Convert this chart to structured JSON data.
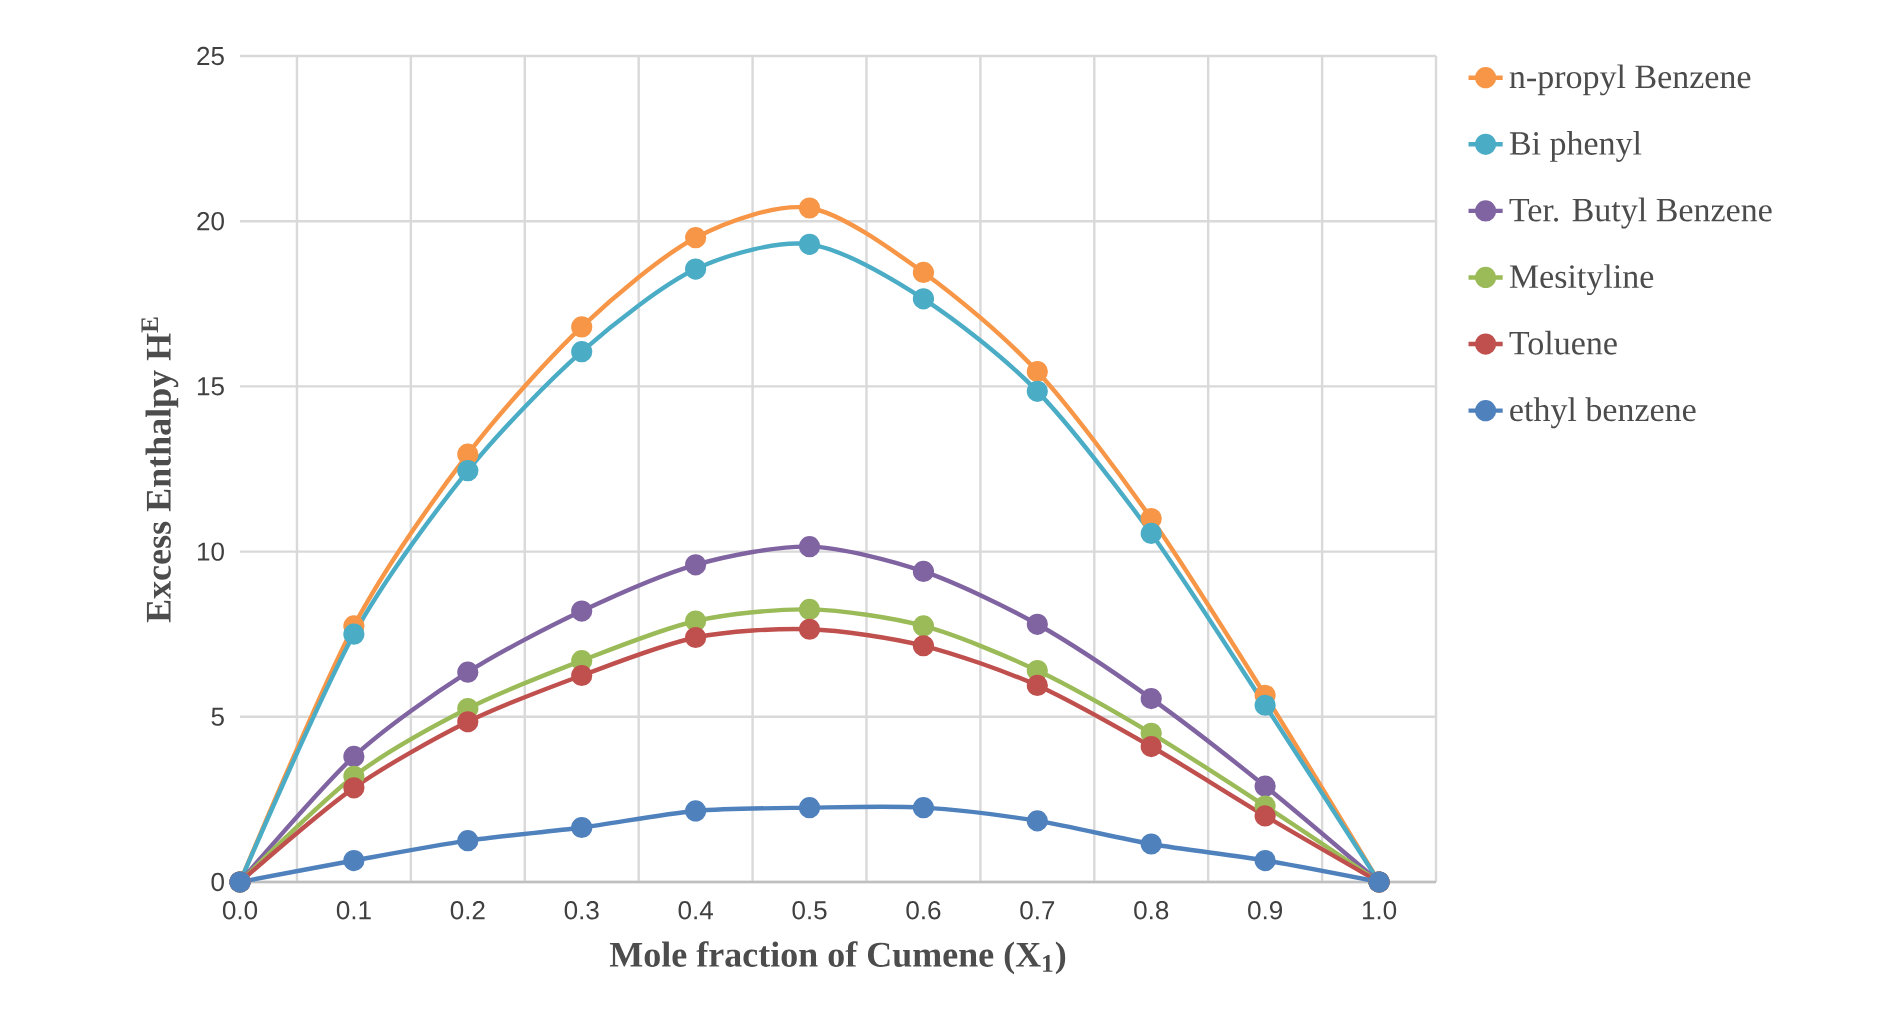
{
  "chart_data": {
    "type": "line",
    "xlabel": "Mole fraction of Cumene (X$_{1}$)",
    "ylabel": "Excess Enthalpy H$^{E}$",
    "categories": [
      "0.0",
      "0.1",
      "0.2",
      "0.3",
      "0.4",
      "0.5",
      "0.6",
      "0.7",
      "0.8",
      "0.9",
      "1.0"
    ],
    "ylim": [
      0,
      25
    ],
    "yticks": [
      0,
      5,
      10,
      15,
      20,
      25
    ],
    "grid": true,
    "legend": "right",
    "marker": "circle",
    "line_style": "solid",
    "series": [
      {
        "name": "n-propyl Benzene",
        "color": "#f79646",
        "values": [
          0,
          7.75,
          12.95,
          16.8,
          19.5,
          20.4,
          18.45,
          15.45,
          11.0,
          5.65,
          0
        ]
      },
      {
        "name": "Bi phenyl",
        "color": "#4bacc6",
        "values": [
          0,
          7.5,
          12.45,
          16.05,
          18.55,
          19.3,
          17.65,
          14.85,
          10.55,
          5.35,
          0
        ]
      },
      {
        "name": "Ter. Butyl Benzene",
        "color": "#8064a2",
        "values": [
          0,
          3.8,
          6.35,
          8.2,
          9.6,
          10.15,
          9.4,
          7.8,
          5.55,
          2.9,
          0
        ]
      },
      {
        "name": "Mesityline",
        "color": "#9bbb59",
        "values": [
          0,
          3.2,
          5.25,
          6.7,
          7.9,
          8.25,
          7.75,
          6.4,
          4.5,
          2.3,
          0
        ]
      },
      {
        "name": "Toluene",
        "color": "#c0504d",
        "values": [
          0,
          2.85,
          4.85,
          6.25,
          7.4,
          7.65,
          7.15,
          5.95,
          4.1,
          2.0,
          0
        ]
      },
      {
        "name": "ethyl benzene",
        "color": "#4f81bd",
        "values": [
          0,
          0.65,
          1.25,
          1.65,
          2.15,
          2.25,
          2.25,
          1.85,
          1.15,
          0.65,
          0
        ]
      }
    ]
  }
}
